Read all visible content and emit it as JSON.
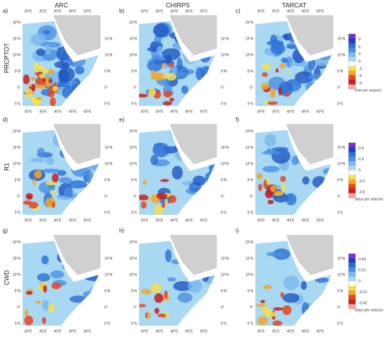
{
  "columns": [
    "ARC",
    "CHIRPS",
    "TARCAT"
  ],
  "panels": [
    "a)",
    "b)",
    "c)",
    "d)",
    "e)",
    "f)",
    "g)",
    "h)",
    "i)"
  ],
  "rows": [
    {
      "label": "PRCPTOT",
      "colorbar": {
        "ticks": [
          "9",
          "6",
          "3",
          "0",
          "-3",
          "-6",
          "-9"
        ],
        "unit": "(mm per season)"
      }
    },
    {
      "label": "R1",
      "colorbar": {
        "ticks": [
          "0.6",
          "0.3",
          "0",
          "-0.3",
          "-0.6"
        ],
        "unit": "(days per season)"
      }
    },
    {
      "label": "CWD",
      "colorbar": {
        "ticks": [
          "0.42",
          "0.21",
          "0",
          "-0.21",
          "-0.42"
        ],
        "unit": "(days per season)"
      }
    }
  ],
  "lat_left": [
    "20°N",
    "15°N",
    "10°N",
    "5°N",
    "0°",
    "5°S"
  ],
  "lat_right": [
    "15°N",
    "10°N",
    "5°N",
    "0°",
    "5°S"
  ],
  "lon": [
    "30°E",
    "35°E",
    "40°E",
    "45°E",
    "50°E"
  ]
}
